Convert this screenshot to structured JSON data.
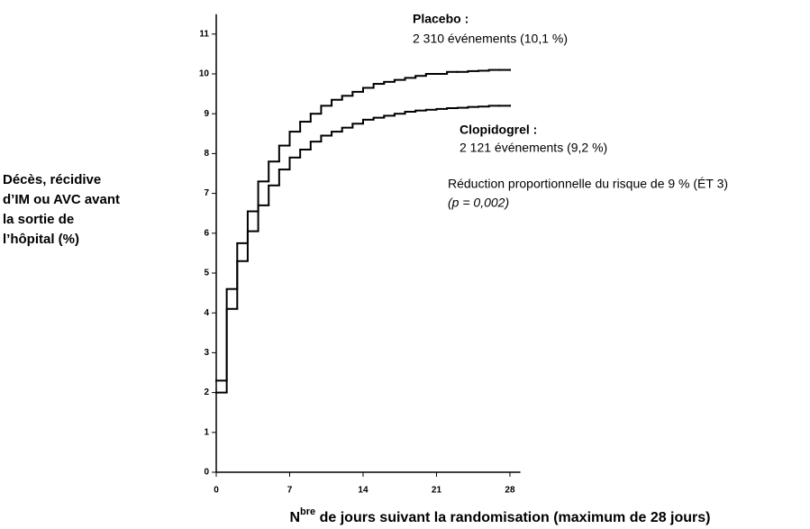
{
  "chart_data": {
    "type": "step",
    "y_label": [
      "Décès, récidive",
      "d’IM ou AVC avant",
      "la sortie de",
      "l’hôpital (%)"
    ],
    "x_label": [
      "N",
      "bre",
      " de jours suivant la randomisation (maximum de 28 jours)"
    ],
    "x": [
      0,
      1,
      2,
      3,
      4,
      5,
      6,
      7,
      8,
      9,
      10,
      11,
      12,
      13,
      14,
      15,
      16,
      17,
      18,
      19,
      20,
      21,
      22,
      23,
      24,
      25,
      26,
      27,
      28
    ],
    "series": [
      {
        "name": "Placebo :",
        "color": "#000000",
        "annotation": "2 310 événements (10,1 %)",
        "values": [
          2.3,
          4.6,
          5.75,
          6.55,
          7.3,
          7.8,
          8.2,
          8.55,
          8.8,
          9.0,
          9.2,
          9.35,
          9.45,
          9.55,
          9.65,
          9.75,
          9.8,
          9.85,
          9.9,
          9.95,
          10.0,
          10.0,
          10.05,
          10.05,
          10.07,
          10.08,
          10.1,
          10.1,
          10.1
        ]
      },
      {
        "name": "Clopidogrel :",
        "color": "#000000",
        "annotation": "2 121 événements (9,2 %)",
        "values": [
          2.0,
          4.1,
          5.3,
          6.05,
          6.7,
          7.2,
          7.6,
          7.9,
          8.1,
          8.3,
          8.45,
          8.55,
          8.65,
          8.75,
          8.85,
          8.9,
          8.95,
          9.0,
          9.05,
          9.08,
          9.1,
          9.12,
          9.14,
          9.15,
          9.17,
          9.18,
          9.2,
          9.2,
          9.2
        ]
      }
    ],
    "annotations": [
      "Réduction proportionnelle du risque de 9 % (ÉT 3)",
      "(p = 0,002)"
    ],
    "xlim": [
      0,
      29
    ],
    "ylim": [
      0,
      11.5
    ],
    "xticks": [
      0,
      7,
      14,
      21,
      28
    ],
    "yticks": [
      0,
      1,
      2,
      3,
      4,
      5,
      6,
      7,
      8,
      9,
      10,
      11
    ]
  }
}
